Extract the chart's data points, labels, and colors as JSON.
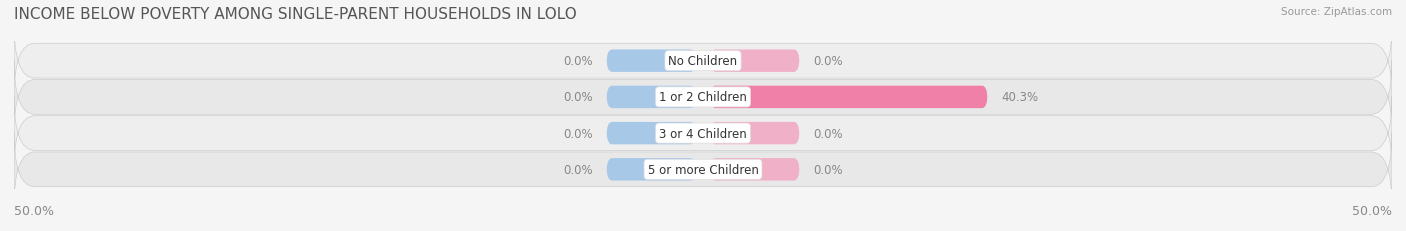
{
  "title": "INCOME BELOW POVERTY AMONG SINGLE-PARENT HOUSEHOLDS IN LOLO",
  "source": "Source: ZipAtlas.com",
  "categories": [
    "No Children",
    "1 or 2 Children",
    "3 or 4 Children",
    "5 or more Children"
  ],
  "single_father": [
    0.0,
    0.0,
    0.0,
    0.0
  ],
  "single_mother": [
    0.0,
    40.3,
    0.0,
    0.0
  ],
  "xlim": [
    -50.0,
    50.0
  ],
  "x_left_label": "50.0%",
  "x_right_label": "50.0%",
  "father_color": "#a8c8e8",
  "mother_color": "#f080a8",
  "mother_color_light": "#f0b0c8",
  "bar_height": 0.62,
  "bg_color": "#f5f5f5",
  "row_bg_color": "#efefef",
  "row_alt_color": "#e5e5e5",
  "title_fontsize": 11,
  "label_fontsize": 8.5,
  "tick_fontsize": 9,
  "value_fontsize": 8.5,
  "category_fontsize": 8.5,
  "min_bar_width": 6.5
}
